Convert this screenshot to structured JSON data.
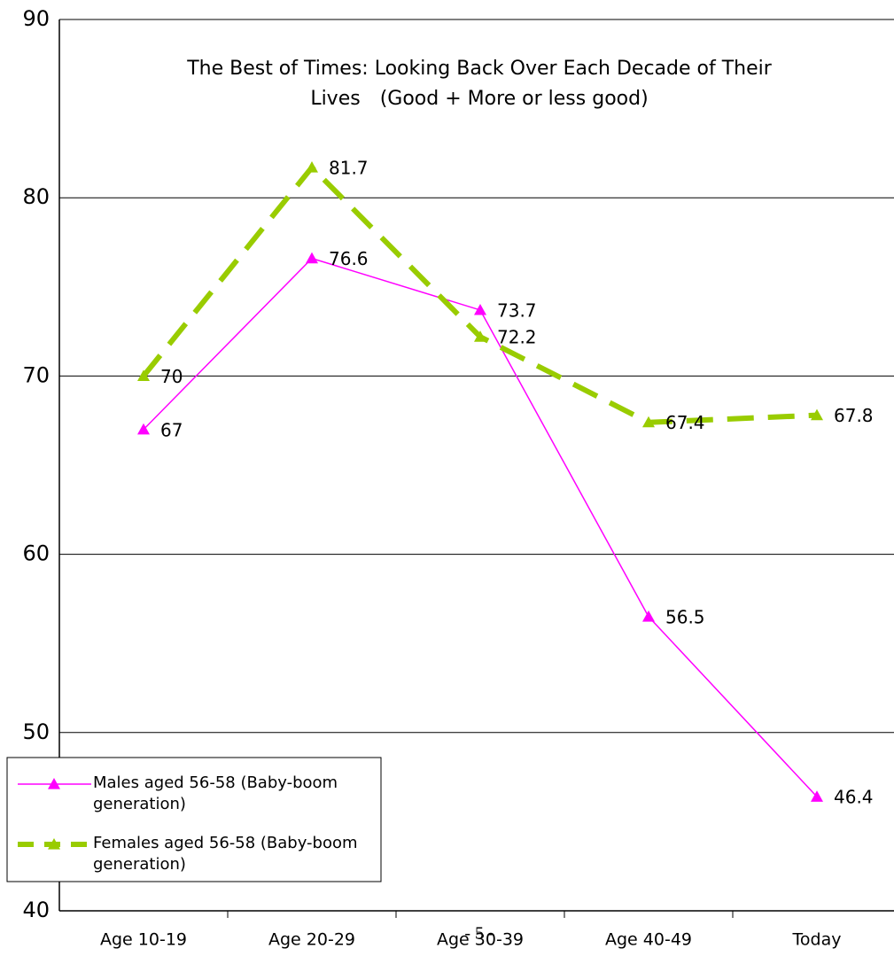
{
  "chart_data": {
    "type": "line",
    "title": [
      "The Best of Times: Looking Back Over Each Decade of Their",
      "Lives　(Good + More or less good)"
    ],
    "categories": [
      "Age 10-19",
      "Age 20-29",
      "Age 30-39",
      "Age 40-49",
      "Today"
    ],
    "series": [
      {
        "name": "Males aged 56-58 (Baby-boom generation)",
        "color": "#ff00ff",
        "values": [
          67,
          76.6,
          73.7,
          56.5,
          46.4
        ]
      },
      {
        "name": "Females aged 56-58 (Baby-boom generation)",
        "color": "#99cc00",
        "values": [
          70,
          81.7,
          72.2,
          67.4,
          67.8
        ]
      }
    ],
    "ylim": [
      40,
      90
    ],
    "yticks": [
      40,
      50,
      60,
      70,
      80,
      90
    ],
    "grid": true,
    "legend": "lower left",
    "page_number": "- 5 -"
  }
}
